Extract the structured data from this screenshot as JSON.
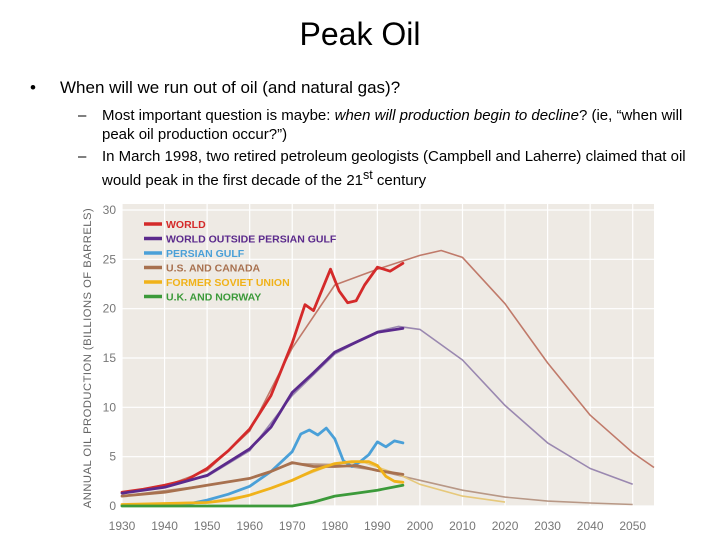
{
  "slide": {
    "title": "Peak Oil",
    "bullet_1": "When will we run out of oil (and natural gas)?",
    "sub_1_prefix": "Most important question is maybe: ",
    "sub_1_italic": "when will production begin to decline",
    "sub_1_suffix": "? (ie, “when will peak oil production occur?”)",
    "sub_2_a": "In March 1998, two retired petroleum geologists (Campbell and Laherre) claimed that oil would peak in the first decade of the 21",
    "sub_2_sup": "st",
    "sub_2_b": " century",
    "bullet_glyph": "•",
    "dash_glyph": "–"
  },
  "chart_data": {
    "type": "line",
    "ylabel": "ANNUAL OIL PRODUCTION (BILLIONS OF BARRELS)",
    "xlim": [
      1930,
      2055
    ],
    "ylim": [
      0,
      30
    ],
    "x_ticks": [
      1930,
      1940,
      1950,
      1960,
      1970,
      1980,
      1990,
      2000,
      2010,
      2020,
      2030,
      2040,
      2050
    ],
    "y_ticks": [
      0,
      5,
      10,
      15,
      20,
      25,
      30
    ],
    "grid": true,
    "legend_position": "top-left",
    "colors": {
      "background": "#eeeae4",
      "grid": "#ffffff",
      "axis_text": "#777777"
    },
    "series": [
      {
        "name": "WORLD",
        "color": "#d42a2a",
        "x": [
          1930,
          1935,
          1940,
          1945,
          1950,
          1955,
          1960,
          1965,
          1970,
          1973,
          1975,
          1979,
          1981,
          1983,
          1985,
          1987,
          1990,
          1993,
          1996
        ],
        "y": [
          1.4,
          1.7,
          2.1,
          2.6,
          3.8,
          5.6,
          7.8,
          11.2,
          16.5,
          20.4,
          19.8,
          24.0,
          21.8,
          20.6,
          20.8,
          22.4,
          24.2,
          23.8,
          24.6
        ]
      },
      {
        "name": "WORLD OUTSIDE PERSIAN GULF",
        "color": "#5b2a8c",
        "x": [
          1930,
          1940,
          1950,
          1960,
          1965,
          1970,
          1975,
          1980,
          1985,
          1990,
          1996
        ],
        "y": [
          1.3,
          1.9,
          3.1,
          5.8,
          8.0,
          11.5,
          13.5,
          15.6,
          16.6,
          17.6,
          18.0
        ]
      },
      {
        "name": "PERSIAN GULF",
        "color": "#4aa0d8",
        "x": [
          1930,
          1945,
          1950,
          1955,
          1960,
          1965,
          1970,
          1972,
          1974,
          1976,
          1978,
          1980,
          1982,
          1984,
          1986,
          1988,
          1990,
          1992,
          1994,
          1996
        ],
        "y": [
          0.05,
          0.15,
          0.6,
          1.2,
          2.0,
          3.5,
          5.5,
          7.3,
          7.7,
          7.2,
          7.9,
          6.8,
          4.6,
          4.0,
          4.5,
          5.2,
          6.5,
          6.0,
          6.6,
          6.4
        ]
      },
      {
        "name": "U.S. AND CANADA",
        "color": "#a8714f",
        "x": [
          1930,
          1940,
          1950,
          1960,
          1965,
          1970,
          1975,
          1980,
          1985,
          1990,
          1996
        ],
        "y": [
          1.0,
          1.4,
          2.1,
          2.8,
          3.5,
          4.4,
          4.0,
          4.0,
          4.1,
          3.6,
          3.2
        ]
      },
      {
        "name": "FORMER SOVIET UNION",
        "color": "#f0b21a",
        "x": [
          1930,
          1940,
          1950,
          1955,
          1960,
          1965,
          1970,
          1975,
          1980,
          1984,
          1988,
          1990,
          1992,
          1994,
          1996
        ],
        "y": [
          0.15,
          0.25,
          0.35,
          0.6,
          1.1,
          1.8,
          2.6,
          3.6,
          4.3,
          4.5,
          4.5,
          4.1,
          3.0,
          2.5,
          2.4
        ]
      },
      {
        "name": "U.K. AND NORWAY",
        "color": "#3c9a3a",
        "x": [
          1930,
          1970,
          1975,
          1980,
          1985,
          1990,
          1996
        ],
        "y": [
          0.0,
          0.0,
          0.4,
          1.0,
          1.3,
          1.6,
          2.1
        ]
      }
    ],
    "projections": [
      {
        "of": "WORLD",
        "color": "#c07a6a",
        "x": [
          1930,
          1940,
          1950,
          1960,
          1970,
          1980,
          1990,
          2000,
          2005,
          2010,
          2020,
          2030,
          2040,
          2050,
          2055
        ],
        "y": [
          1.3,
          2.0,
          3.6,
          7.6,
          16.0,
          22.4,
          24.0,
          25.4,
          25.9,
          25.2,
          20.5,
          14.5,
          9.2,
          5.4,
          3.9
        ]
      },
      {
        "of": "WORLD OUTSIDE PERSIAN GULF",
        "color": "#9a88b0",
        "x": [
          1930,
          1950,
          1960,
          1970,
          1980,
          1990,
          1995,
          2000,
          2010,
          2020,
          2030,
          2040,
          2050
        ],
        "y": [
          1.3,
          3.0,
          5.6,
          11.2,
          15.4,
          17.7,
          18.2,
          17.9,
          14.8,
          10.2,
          6.4,
          3.8,
          2.2
        ]
      },
      {
        "of": "U.S. AND CANADA",
        "color": "#b89886",
        "x": [
          1930,
          1950,
          1960,
          1970,
          1980,
          1990,
          2000,
          2010,
          2020,
          2030,
          2040,
          2050
        ],
        "y": [
          1.0,
          2.1,
          2.8,
          4.3,
          4.2,
          3.6,
          2.6,
          1.6,
          0.9,
          0.5,
          0.3,
          0.15
        ]
      },
      {
        "of": "FORMER SOVIET UNION",
        "color": "#e6c87a",
        "x": [
          1930,
          1950,
          1960,
          1970,
          1980,
          1987,
          1995,
          2000,
          2010,
          2020
        ],
        "y": [
          0.15,
          0.4,
          1.1,
          2.6,
          4.3,
          4.4,
          3.2,
          2.2,
          1.0,
          0.4
        ]
      }
    ]
  }
}
